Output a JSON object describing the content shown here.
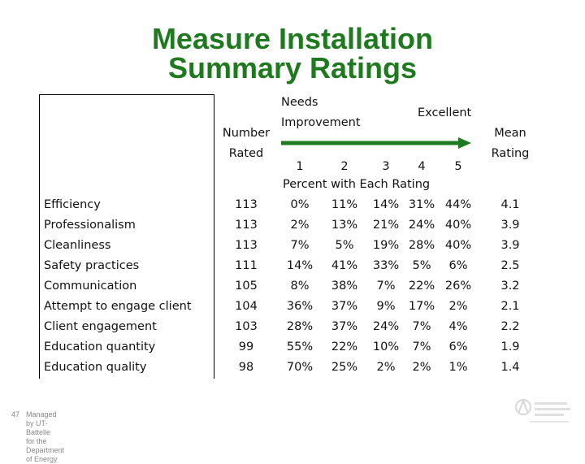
{
  "title_line1": "Measure Installation",
  "title_line2": "Summary Ratings",
  "headers": {
    "number": "Number",
    "rated": "Rated",
    "needs": "Needs",
    "improvement": "Improvement",
    "excellent": "Excellent",
    "mean": "Mean",
    "rating": "Rating",
    "scale": [
      "1",
      "2",
      "3",
      "4",
      "5"
    ],
    "percent_caption": "Percent with Each Rating"
  },
  "rows": [
    {
      "label": "Efficiency",
      "n": "113",
      "p": [
        "0%",
        "11%",
        "14%",
        "31%",
        "44%"
      ],
      "mean": "4.1"
    },
    {
      "label": "Professionalism",
      "n": "113",
      "p": [
        "2%",
        "13%",
        "21%",
        "24%",
        "40%"
      ],
      "mean": "3.9"
    },
    {
      "label": "Cleanliness",
      "n": "113",
      "p": [
        "7%",
        "5%",
        "19%",
        "28%",
        "40%"
      ],
      "mean": "3.9"
    },
    {
      "label": "Safety practices",
      "n": "111",
      "p": [
        "14%",
        "41%",
        "33%",
        "5%",
        "6%"
      ],
      "mean": "2.5"
    },
    {
      "label": "Communication",
      "n": "105",
      "p": [
        "8%",
        "38%",
        "7%",
        "22%",
        "26%"
      ],
      "mean": "3.2"
    },
    {
      "label": "Attempt to engage client",
      "n": "104",
      "p": [
        "36%",
        "37%",
        "9%",
        "17%",
        "2%"
      ],
      "mean": "2.1"
    },
    {
      "label": "Client engagement",
      "n": "103",
      "p": [
        "28%",
        "37%",
        "24%",
        "7%",
        "4%"
      ],
      "mean": "2.2"
    },
    {
      "label": "Education quantity",
      "n": "99",
      "p": [
        "55%",
        "22%",
        "10%",
        "7%",
        "6%"
      ],
      "mean": "1.9"
    },
    {
      "label": "Education quality",
      "n": "98",
      "p": [
        "70%",
        "25%",
        "2%",
        "2%",
        "1%"
      ],
      "mean": "1.4"
    }
  ],
  "footer": {
    "page": "47",
    "line1": "Managed by UT-Battelle",
    "line2": "for the Department of Energy"
  },
  "arrow_color": "#1f7a1f",
  "title_color": "#1f7a1f"
}
